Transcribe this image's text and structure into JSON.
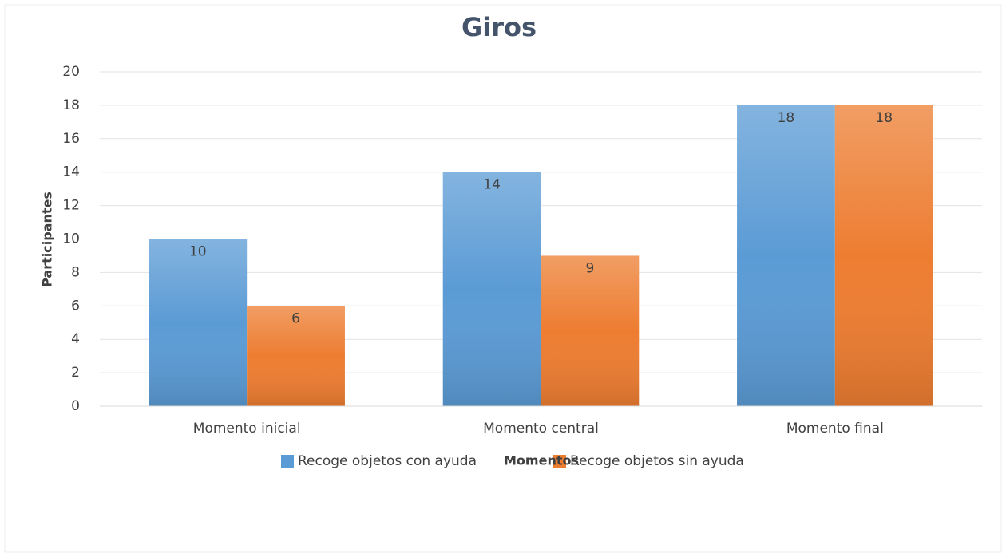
{
  "chart_data": {
    "type": "bar",
    "title": "Giros",
    "ylabel": "Participantes",
    "xlabel": "Momentos",
    "categories": [
      "Momento inicial",
      "Momento central",
      "Momento final"
    ],
    "series": [
      {
        "name": "Recoge objetos con ayuda",
        "color": "#5b9bd5",
        "values": [
          10,
          14,
          18
        ]
      },
      {
        "name": "Recoge objetos sin ayuda",
        "color": "#ed7d31",
        "values": [
          6,
          9,
          18
        ]
      }
    ],
    "ylim": [
      0,
      20
    ],
    "yticks": [
      0,
      2,
      4,
      6,
      8,
      10,
      12,
      14,
      16,
      18,
      20
    ],
    "grid": true,
    "legend": "bottom"
  }
}
